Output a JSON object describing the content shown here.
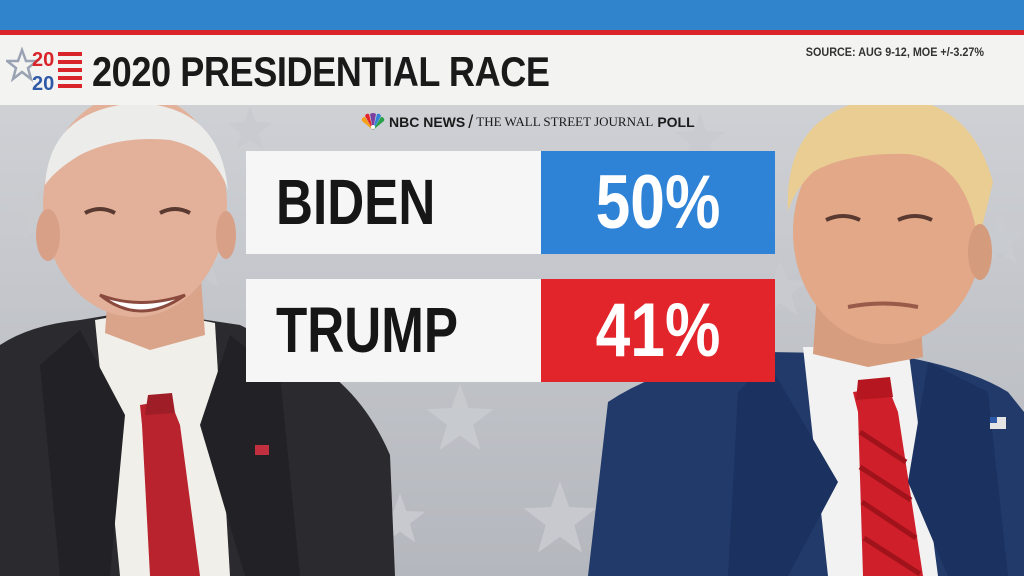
{
  "header": {
    "logo_top": "20",
    "logo_bottom": "20",
    "title": "2020 PRESIDENTIAL RACE",
    "source": "SOURCE: AUG 9-12, MOE +/-3.27%"
  },
  "poll": {
    "network": "NBC NEWS",
    "separator": "/",
    "publication": "THE WALL STREET JOURNAL",
    "label": "POLL"
  },
  "results": [
    {
      "name": "BIDEN",
      "percent": "50%",
      "color": "#2f83d6"
    },
    {
      "name": "TRUMP",
      "percent": "41%",
      "color": "#e2252b"
    }
  ],
  "colors": {
    "accent_blue": "#2f84cc",
    "accent_red": "#d8242a",
    "background": "#bfc2c8"
  },
  "icons": {
    "logo": "2020-star-flag-icon",
    "network": "nbc-peacock-icon"
  }
}
